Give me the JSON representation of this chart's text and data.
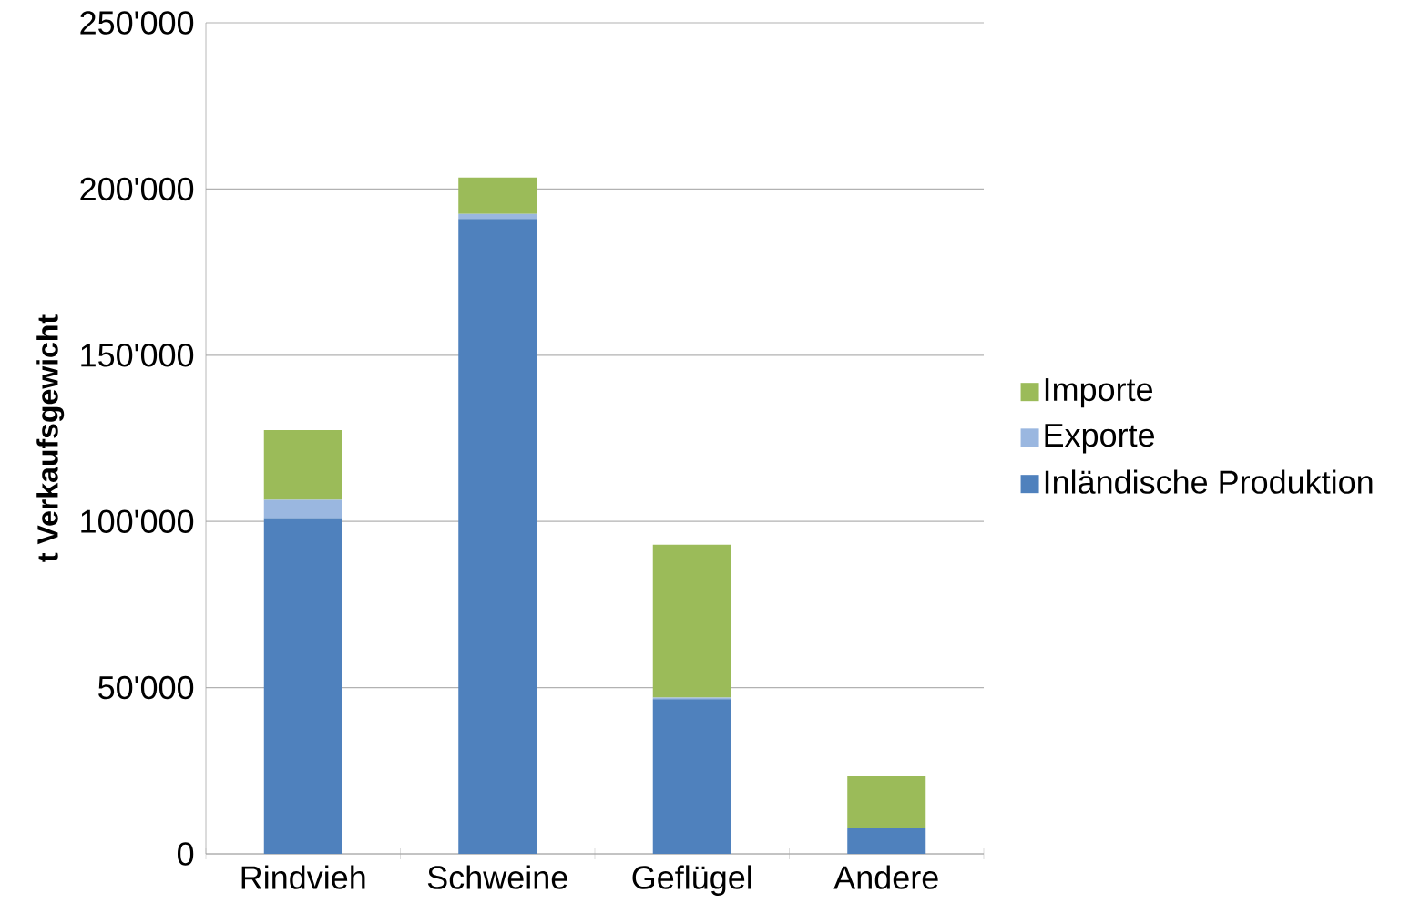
{
  "chart_data": {
    "type": "bar",
    "stacked": true,
    "ylabel": "t Verkaufsgewicht",
    "categories": [
      "Rindvieh",
      "Schweine",
      "Geflügel",
      "Andere"
    ],
    "series": [
      {
        "name": "Inländische Produktion",
        "color": "#4f81bd",
        "values": [
          101000,
          191000,
          46500,
          7700
        ]
      },
      {
        "name": "Exporte",
        "color": "#9ab7e0",
        "values": [
          5500,
          1500,
          500,
          0
        ]
      },
      {
        "name": "Importe",
        "color": "#9bbb59",
        "values": [
          21000,
          11000,
          46000,
          15600
        ]
      }
    ],
    "ylim": [
      0,
      250000
    ],
    "yticks": [
      {
        "value": 0,
        "label": "0"
      },
      {
        "value": 50000,
        "label": "50'000"
      },
      {
        "value": 100000,
        "label": "100'000"
      },
      {
        "value": 150000,
        "label": "150'000"
      },
      {
        "value": 200000,
        "label": "200'000"
      },
      {
        "value": 250000,
        "label": "250'000"
      }
    ],
    "grid": "y",
    "legend": "right"
  }
}
